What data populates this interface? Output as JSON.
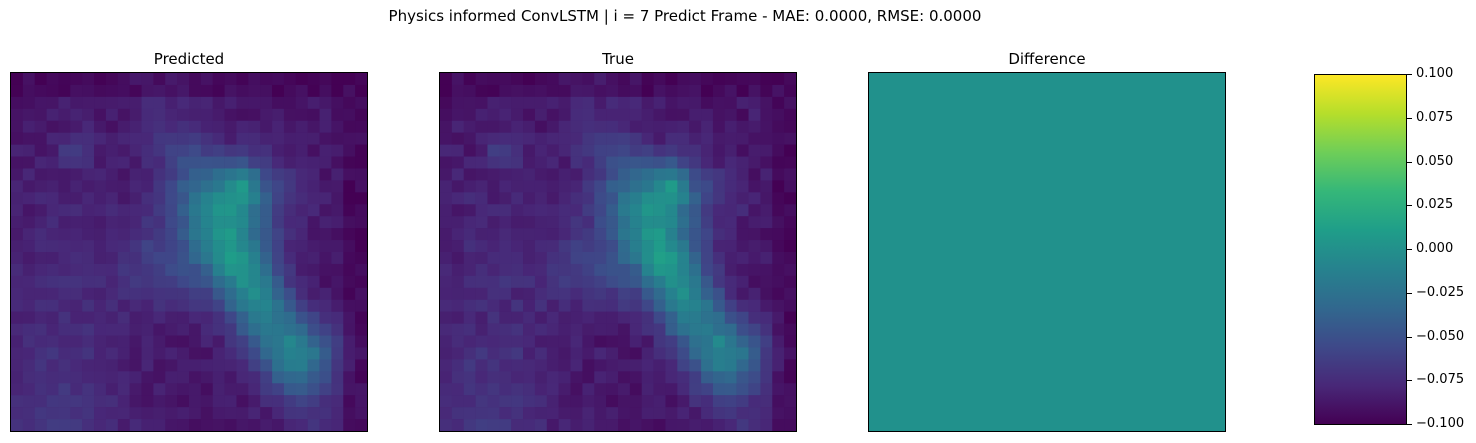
{
  "suptitle": "Physics informed ConvLSTM | i = 7 Predict Frame - MAE: 0.0000, RMSE: 0.0000",
  "panels": [
    {
      "title": "Predicted"
    },
    {
      "title": "True"
    },
    {
      "title": "Difference"
    }
  ],
  "colormap": [
    "#440154",
    "#482878",
    "#3e4989",
    "#31688e",
    "#26828e",
    "#1f9e89",
    "#35b779",
    "#6ece58",
    "#b5de2b",
    "#fde725"
  ],
  "difference_color": "#21918c",
  "chart_data": {
    "type": "heatmap",
    "grid_size": [
      30,
      30
    ],
    "colorbar": {
      "vmin": -0.1,
      "vmax": 0.1,
      "ticks": [
        "0.100",
        "0.075",
        "0.050",
        "0.025",
        "0.000",
        "−0.025",
        "−0.050",
        "−0.075",
        "−0.100"
      ]
    },
    "metrics": {
      "MAE": "0.0000",
      "RMSE": "0.0000"
    },
    "difference_value": 0.0
  }
}
